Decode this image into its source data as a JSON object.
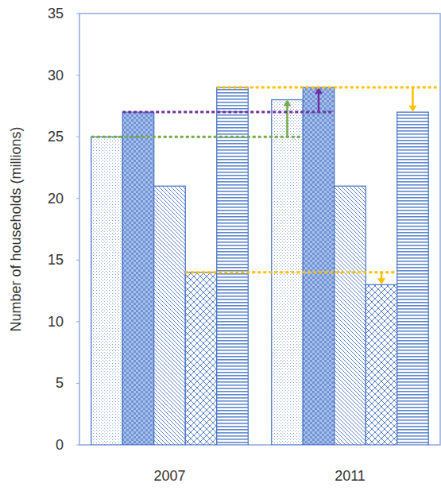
{
  "chart_data": {
    "type": "bar",
    "y_label": "Number of households (millions)",
    "categories": [
      "2007",
      "2011"
    ],
    "series": [
      {
        "color": "#4472c4",
        "values": [
          25,
          28
        ]
      },
      {
        "color": "#4472c4",
        "values": [
          27,
          29
        ]
      },
      {
        "color": "#4472c4",
        "values": [
          21,
          21
        ]
      },
      {
        "color": "#4472c4",
        "values": [
          14,
          13
        ]
      },
      {
        "color": "#4472c4",
        "values": [
          29,
          27
        ]
      }
    ],
    "ylim": [
      0,
      35
    ],
    "yticks": [
      0,
      5,
      10,
      15,
      20,
      25,
      30,
      35
    ],
    "grid": false
  }
}
